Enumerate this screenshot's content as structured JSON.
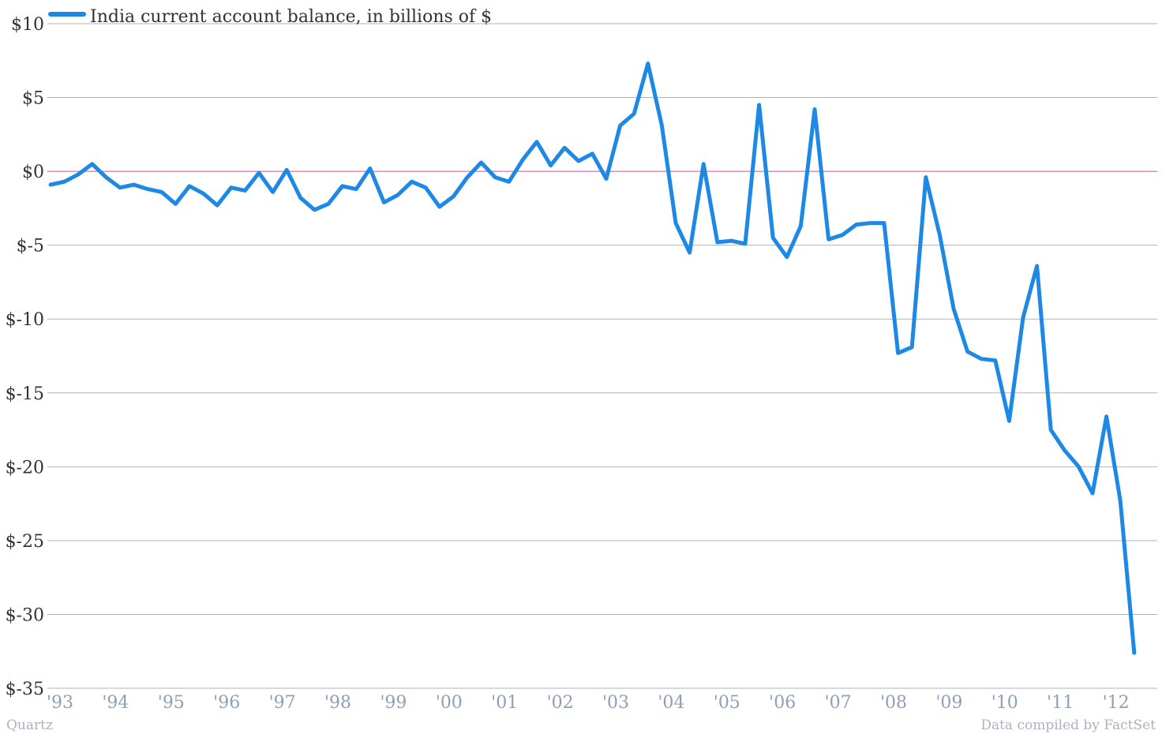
{
  "colors": {
    "line": "#1e88e5",
    "zero_line": "#e040a0",
    "grid": "#b3b3b3",
    "axis_text": "#333333",
    "x_text": "#8f9fb5",
    "footer_text": "#a9b3c2"
  },
  "footer": {
    "left": "Quartz",
    "right": "Data compiled by FactSet"
  },
  "chart_data": {
    "type": "line",
    "legend": {
      "label": "India current account balance, in billions of $",
      "position": "top-left"
    },
    "ylim": [
      -35,
      10
    ],
    "yticks": [
      10,
      5,
      0,
      -5,
      -10,
      -15,
      -20,
      -25,
      -30,
      -35
    ],
    "ytick_labels": [
      "$10",
      "$5",
      "$0",
      "$-5",
      "$-10",
      "$-15",
      "$-20",
      "$-25",
      "$-30",
      "$-35"
    ],
    "xtick_labels": [
      "'93",
      "'94",
      "'95",
      "'96",
      "'97",
      "'98",
      "'99",
      "'00",
      "'01",
      "'02",
      "'03",
      "'04",
      "'05",
      "'06",
      "'07",
      "'08",
      "'09",
      "'10",
      "'11",
      "'12"
    ],
    "xlim": [
      1993,
      2013
    ],
    "grid": "horizontal",
    "series": [
      {
        "name": "India current account balance, in billions of $",
        "x": [
          1993.0,
          1993.25,
          1993.5,
          1993.75,
          1994.0,
          1994.25,
          1994.5,
          1994.75,
          1995.0,
          1995.25,
          1995.5,
          1995.75,
          1996.0,
          1996.25,
          1996.5,
          1996.75,
          1997.0,
          1997.25,
          1997.5,
          1997.75,
          1998.0,
          1998.25,
          1998.5,
          1998.75,
          1999.0,
          1999.25,
          1999.5,
          1999.75,
          2000.0,
          2000.25,
          2000.5,
          2000.75,
          2001.0,
          2001.25,
          2001.5,
          2001.75,
          2002.0,
          2002.25,
          2002.5,
          2002.75,
          2003.0,
          2003.25,
          2003.5,
          2003.75,
          2004.0,
          2004.25,
          2004.5,
          2004.75,
          2005.0,
          2005.25,
          2005.5,
          2005.75,
          2006.0,
          2006.25,
          2006.5,
          2006.75,
          2007.0,
          2007.25,
          2007.5,
          2007.75,
          2008.0,
          2008.25,
          2008.5,
          2008.75,
          2009.0,
          2009.25,
          2009.5,
          2009.75,
          2010.0,
          2010.25,
          2010.5,
          2010.75,
          2011.0,
          2011.25,
          2011.5,
          2011.75,
          2012.0,
          2012.25,
          2012.5
        ],
        "values": [
          -0.9,
          -0.7,
          -0.2,
          0.5,
          -0.4,
          -1.1,
          -0.9,
          -1.2,
          -1.4,
          -2.2,
          -1.0,
          -1.5,
          -2.3,
          -1.1,
          -1.3,
          -0.1,
          -1.4,
          0.1,
          -1.8,
          -2.6,
          -2.2,
          -1.0,
          -1.2,
          0.2,
          -2.1,
          -1.6,
          -0.7,
          -1.1,
          -2.4,
          -1.7,
          -0.4,
          0.6,
          -0.4,
          -0.7,
          0.8,
          2.0,
          0.4,
          1.6,
          0.7,
          1.2,
          -0.5,
          3.1,
          3.9,
          7.3,
          3.1,
          -3.5,
          -5.5,
          0.5,
          -4.8,
          -4.7,
          -4.9,
          4.5,
          -4.5,
          -5.8,
          -3.7,
          4.2,
          -4.6,
          -4.3,
          -3.6,
          -3.5,
          -3.5,
          -12.3,
          -11.9,
          -0.4,
          -4.3,
          -9.3,
          -12.2,
          -12.7,
          -12.8,
          -16.9,
          -9.9,
          -6.4,
          -17.5,
          -18.9,
          -20.0,
          -21.8,
          -16.6,
          -22.3,
          -32.6
        ]
      }
    ]
  }
}
